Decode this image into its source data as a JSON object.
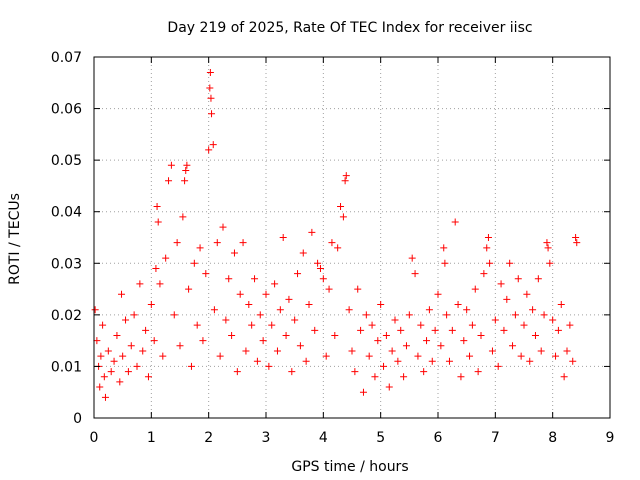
{
  "chart_data": {
    "type": "scatter",
    "title": "Day 219 of 2025, Rate Of TEC Index for receiver iisc",
    "xlabel": "GPS time / hours",
    "ylabel": "ROTI / TECUs",
    "xlim": [
      0,
      9
    ],
    "ylim": [
      0,
      0.07
    ],
    "x_ticks": [
      "0",
      "1",
      "2",
      "3",
      "4",
      "5",
      "6",
      "7",
      "8",
      "9"
    ],
    "y_ticks": [
      "0",
      "0.01",
      "0.02",
      "0.03",
      "0.04",
      "0.05",
      "0.06",
      "0.07"
    ],
    "grid": true,
    "marker": "+",
    "series": [
      {
        "name": "ROTI",
        "color": "#ff0000",
        "points": [
          [
            0.02,
            0.021
          ],
          [
            0.05,
            0.015
          ],
          [
            0.08,
            0.01
          ],
          [
            0.1,
            0.006
          ],
          [
            0.12,
            0.012
          ],
          [
            0.15,
            0.018
          ],
          [
            0.18,
            0.008
          ],
          [
            0.2,
            0.004
          ],
          [
            0.25,
            0.013
          ],
          [
            0.3,
            0.009
          ],
          [
            0.35,
            0.011
          ],
          [
            0.4,
            0.016
          ],
          [
            0.45,
            0.007
          ],
          [
            0.48,
            0.024
          ],
          [
            0.5,
            0.012
          ],
          [
            0.55,
            0.019
          ],
          [
            0.6,
            0.009
          ],
          [
            0.65,
            0.014
          ],
          [
            0.7,
            0.02
          ],
          [
            0.75,
            0.01
          ],
          [
            0.8,
            0.026
          ],
          [
            0.85,
            0.013
          ],
          [
            0.9,
            0.017
          ],
          [
            0.95,
            0.008
          ],
          [
            1.0,
            0.022
          ],
          [
            1.05,
            0.015
          ],
          [
            1.08,
            0.029
          ],
          [
            1.1,
            0.041
          ],
          [
            1.12,
            0.038
          ],
          [
            1.15,
            0.026
          ],
          [
            1.2,
            0.012
          ],
          [
            1.25,
            0.031
          ],
          [
            1.3,
            0.046
          ],
          [
            1.35,
            0.049
          ],
          [
            1.4,
            0.02
          ],
          [
            1.45,
            0.034
          ],
          [
            1.5,
            0.014
          ],
          [
            1.55,
            0.039
          ],
          [
            1.58,
            0.046
          ],
          [
            1.6,
            0.048
          ],
          [
            1.62,
            0.049
          ],
          [
            1.65,
            0.025
          ],
          [
            1.7,
            0.01
          ],
          [
            1.75,
            0.03
          ],
          [
            1.8,
            0.018
          ],
          [
            1.85,
            0.033
          ],
          [
            1.9,
            0.015
          ],
          [
            1.95,
            0.028
          ],
          [
            2.0,
            0.052
          ],
          [
            2.02,
            0.064
          ],
          [
            2.03,
            0.067
          ],
          [
            2.04,
            0.062
          ],
          [
            2.05,
            0.059
          ],
          [
            2.08,
            0.053
          ],
          [
            2.1,
            0.021
          ],
          [
            2.15,
            0.034
          ],
          [
            2.2,
            0.012
          ],
          [
            2.25,
            0.037
          ],
          [
            2.3,
            0.019
          ],
          [
            2.35,
            0.027
          ],
          [
            2.4,
            0.016
          ],
          [
            2.45,
            0.032
          ],
          [
            2.5,
            0.009
          ],
          [
            2.55,
            0.024
          ],
          [
            2.6,
            0.034
          ],
          [
            2.65,
            0.013
          ],
          [
            2.7,
            0.022
          ],
          [
            2.75,
            0.018
          ],
          [
            2.8,
            0.027
          ],
          [
            2.85,
            0.011
          ],
          [
            2.9,
            0.02
          ],
          [
            2.95,
            0.015
          ],
          [
            3.0,
            0.024
          ],
          [
            3.05,
            0.01
          ],
          [
            3.1,
            0.018
          ],
          [
            3.15,
            0.026
          ],
          [
            3.2,
            0.013
          ],
          [
            3.25,
            0.021
          ],
          [
            3.3,
            0.035
          ],
          [
            3.35,
            0.016
          ],
          [
            3.4,
            0.023
          ],
          [
            3.45,
            0.009
          ],
          [
            3.5,
            0.019
          ],
          [
            3.55,
            0.028
          ],
          [
            3.6,
            0.014
          ],
          [
            3.65,
            0.032
          ],
          [
            3.7,
            0.011
          ],
          [
            3.75,
            0.022
          ],
          [
            3.8,
            0.036
          ],
          [
            3.85,
            0.017
          ],
          [
            3.9,
            0.03
          ],
          [
            3.95,
            0.029
          ],
          [
            4.0,
            0.027
          ],
          [
            4.05,
            0.012
          ],
          [
            4.1,
            0.025
          ],
          [
            4.15,
            0.034
          ],
          [
            4.2,
            0.016
          ],
          [
            4.25,
            0.033
          ],
          [
            4.3,
            0.041
          ],
          [
            4.35,
            0.039
          ],
          [
            4.38,
            0.046
          ],
          [
            4.4,
            0.047
          ],
          [
            4.45,
            0.021
          ],
          [
            4.5,
            0.013
          ],
          [
            4.55,
            0.009
          ],
          [
            4.6,
            0.025
          ],
          [
            4.65,
            0.017
          ],
          [
            4.7,
            0.005
          ],
          [
            4.75,
            0.02
          ],
          [
            4.8,
            0.012
          ],
          [
            4.85,
            0.018
          ],
          [
            4.9,
            0.008
          ],
          [
            4.95,
            0.015
          ],
          [
            5.0,
            0.022
          ],
          [
            5.05,
            0.01
          ],
          [
            5.1,
            0.016
          ],
          [
            5.15,
            0.006
          ],
          [
            5.2,
            0.013
          ],
          [
            5.25,
            0.019
          ],
          [
            5.3,
            0.011
          ],
          [
            5.35,
            0.017
          ],
          [
            5.4,
            0.008
          ],
          [
            5.45,
            0.014
          ],
          [
            5.5,
            0.02
          ],
          [
            5.55,
            0.031
          ],
          [
            5.6,
            0.028
          ],
          [
            5.65,
            0.012
          ],
          [
            5.7,
            0.018
          ],
          [
            5.75,
            0.009
          ],
          [
            5.8,
            0.015
          ],
          [
            5.85,
            0.021
          ],
          [
            5.9,
            0.011
          ],
          [
            5.95,
            0.017
          ],
          [
            6.0,
            0.024
          ],
          [
            6.05,
            0.014
          ],
          [
            6.1,
            0.033
          ],
          [
            6.12,
            0.03
          ],
          [
            6.15,
            0.02
          ],
          [
            6.2,
            0.011
          ],
          [
            6.25,
            0.017
          ],
          [
            6.3,
            0.038
          ],
          [
            6.35,
            0.022
          ],
          [
            6.4,
            0.008
          ],
          [
            6.45,
            0.015
          ],
          [
            6.5,
            0.021
          ],
          [
            6.55,
            0.012
          ],
          [
            6.6,
            0.018
          ],
          [
            6.65,
            0.025
          ],
          [
            6.7,
            0.009
          ],
          [
            6.75,
            0.016
          ],
          [
            6.8,
            0.028
          ],
          [
            6.85,
            0.033
          ],
          [
            6.88,
            0.035
          ],
          [
            6.9,
            0.03
          ],
          [
            6.95,
            0.013
          ],
          [
            7.0,
            0.019
          ],
          [
            7.05,
            0.01
          ],
          [
            7.1,
            0.026
          ],
          [
            7.15,
            0.017
          ],
          [
            7.2,
            0.023
          ],
          [
            7.25,
            0.03
          ],
          [
            7.3,
            0.014
          ],
          [
            7.35,
            0.02
          ],
          [
            7.4,
            0.027
          ],
          [
            7.45,
            0.012
          ],
          [
            7.5,
            0.018
          ],
          [
            7.55,
            0.024
          ],
          [
            7.6,
            0.011
          ],
          [
            7.65,
            0.021
          ],
          [
            7.7,
            0.016
          ],
          [
            7.75,
            0.027
          ],
          [
            7.8,
            0.013
          ],
          [
            7.85,
            0.02
          ],
          [
            7.9,
            0.034
          ],
          [
            7.92,
            0.033
          ],
          [
            7.95,
            0.03
          ],
          [
            8.0,
            0.019
          ],
          [
            8.05,
            0.012
          ],
          [
            8.1,
            0.017
          ],
          [
            8.15,
            0.022
          ],
          [
            8.2,
            0.008
          ],
          [
            8.25,
            0.013
          ],
          [
            8.3,
            0.018
          ],
          [
            8.35,
            0.011
          ],
          [
            8.4,
            0.035
          ],
          [
            8.42,
            0.034
          ]
        ]
      }
    ]
  }
}
